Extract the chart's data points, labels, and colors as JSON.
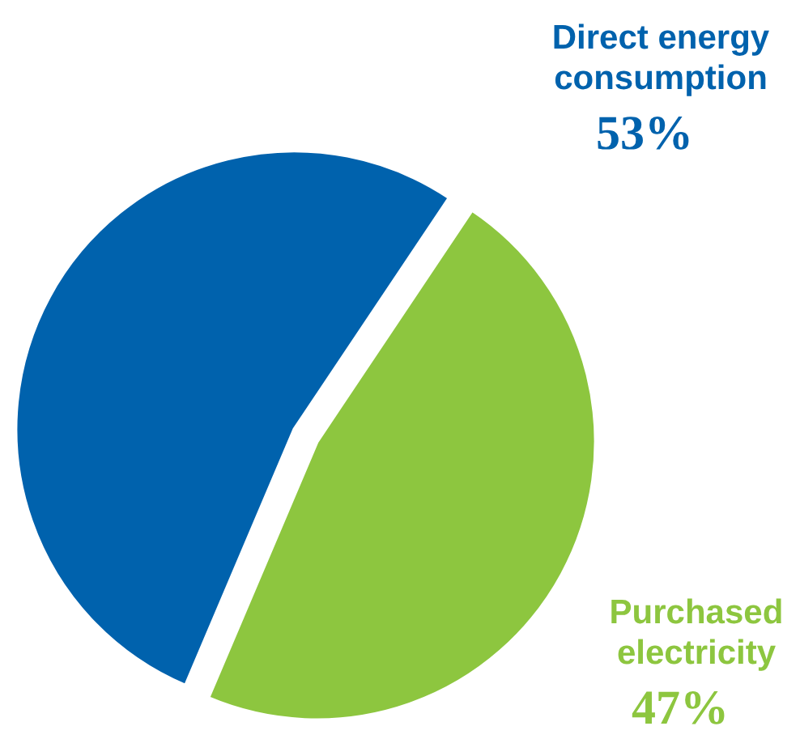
{
  "chart_data": {
    "type": "pie",
    "categories": [
      "Direct energy consumption",
      "Purchased electricity"
    ],
    "values": [
      53,
      47
    ],
    "colors": [
      "#0062ad",
      "#8dc63f"
    ],
    "value_labels": [
      "53%",
      "47%"
    ]
  }
}
